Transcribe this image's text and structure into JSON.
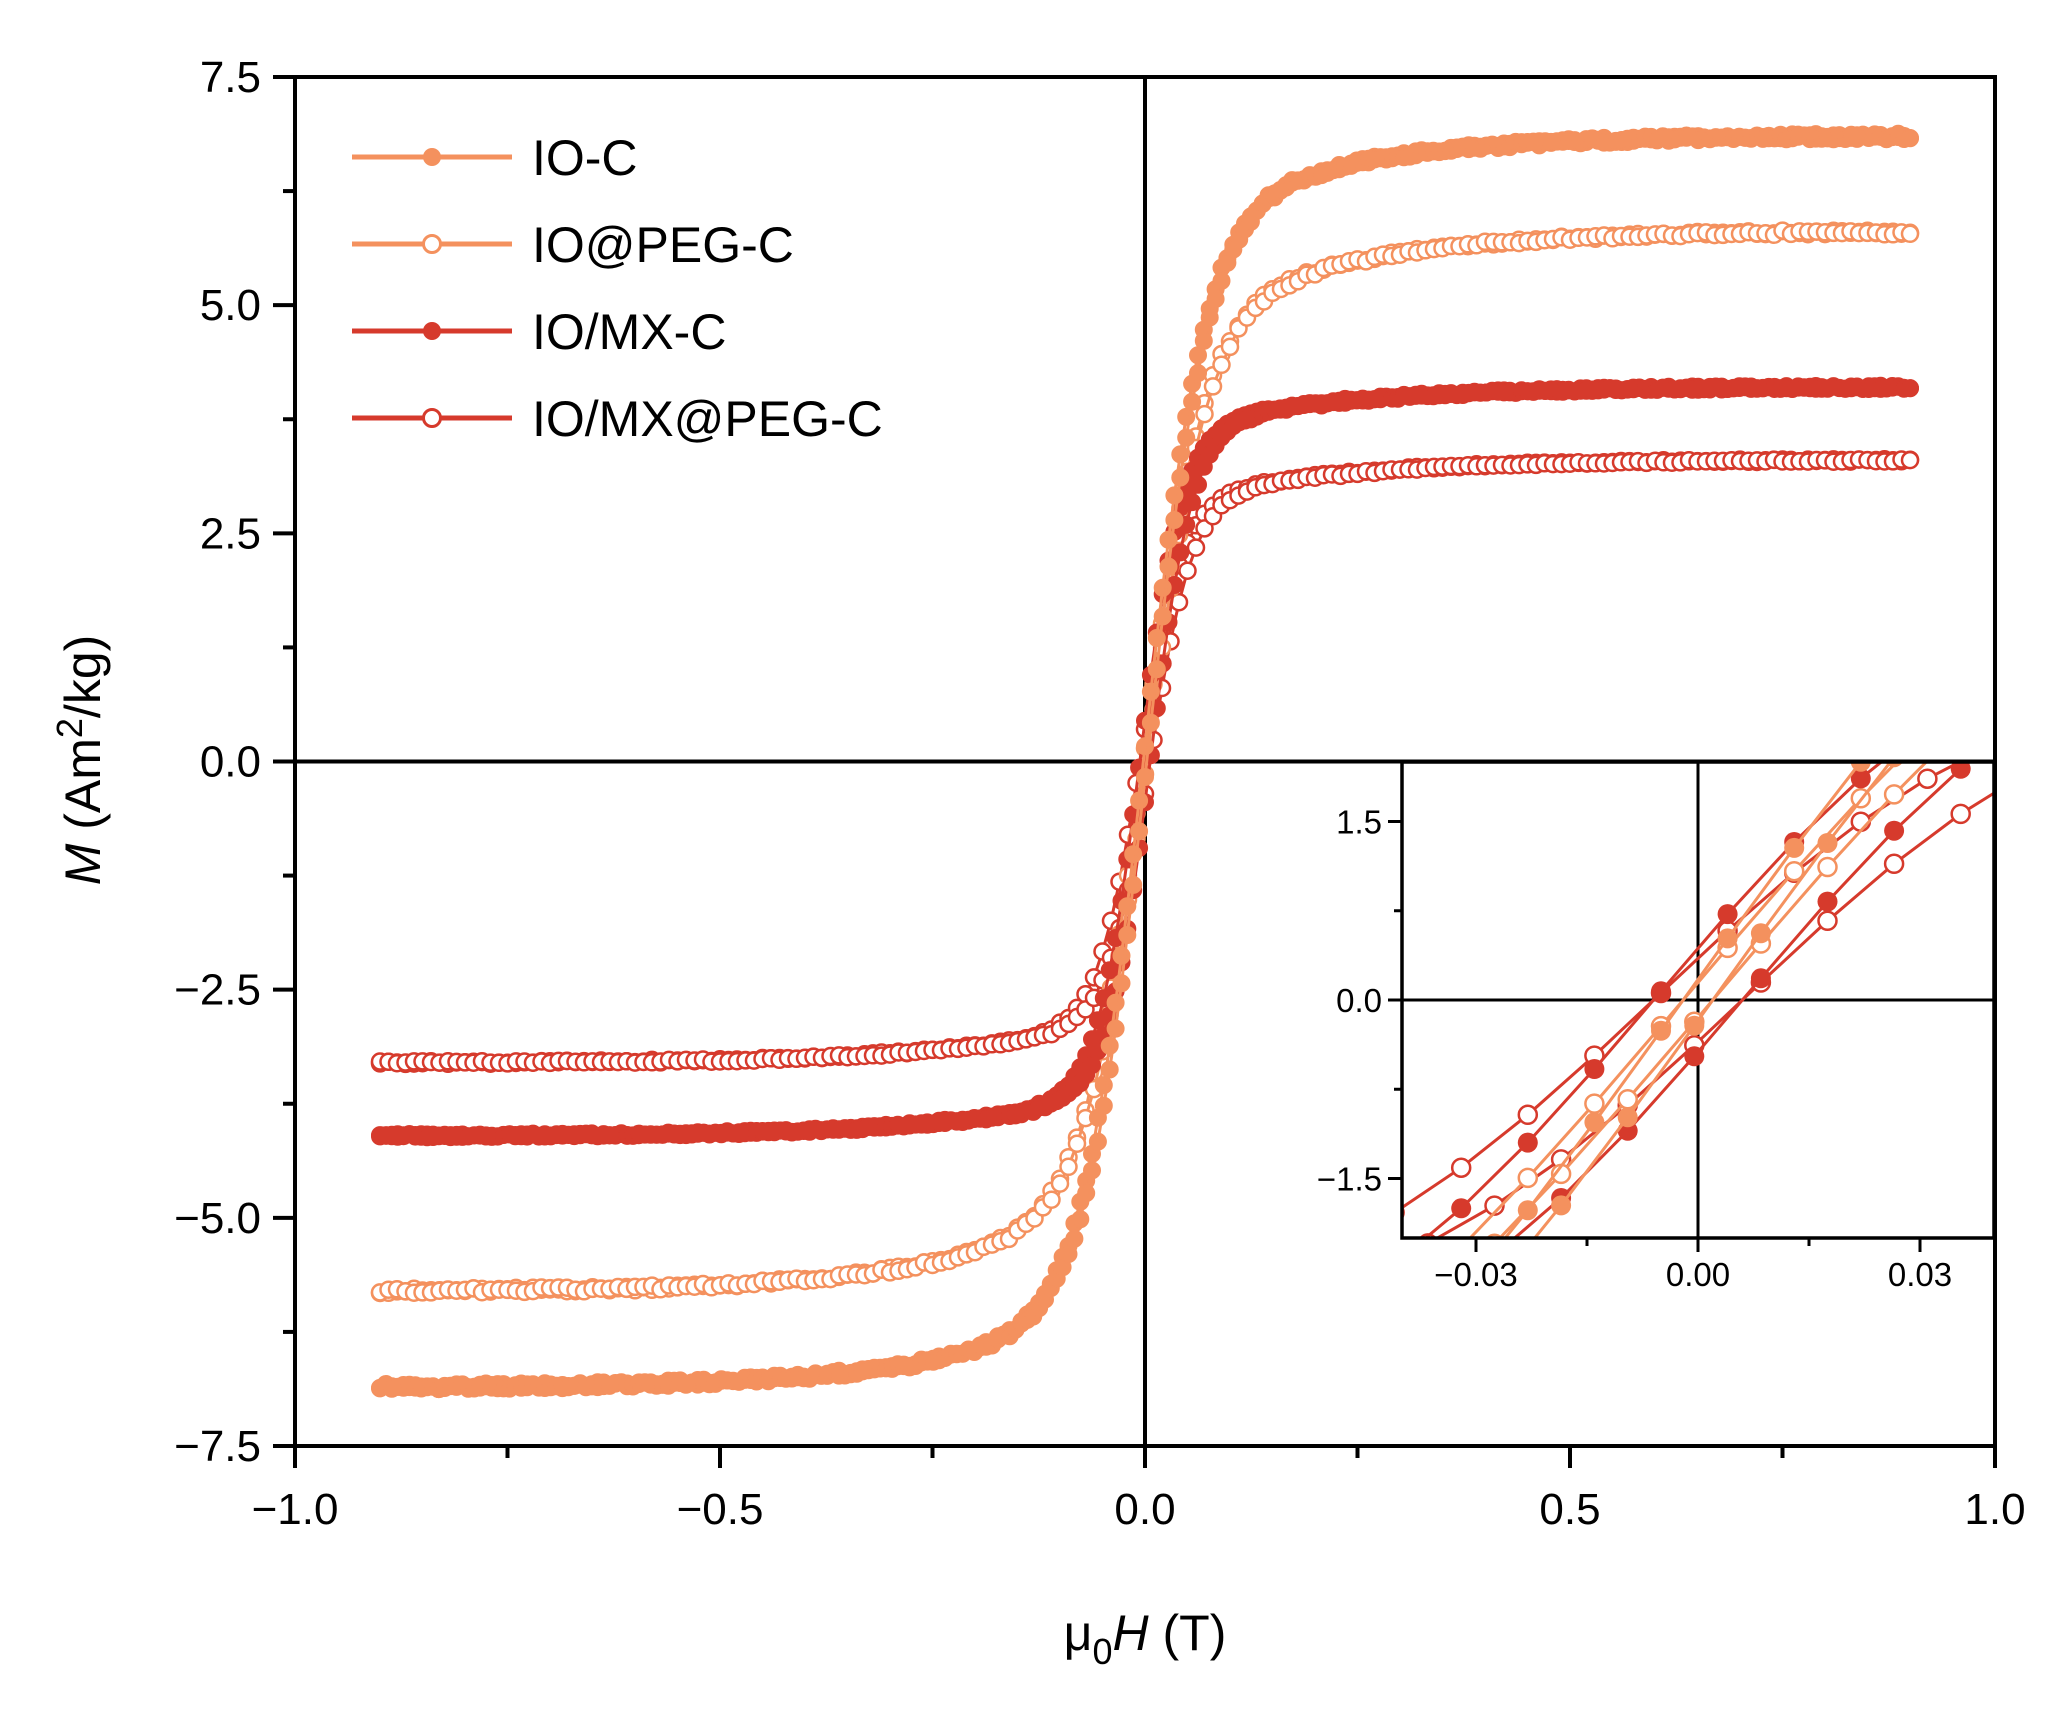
{
  "chart_data": [
    {
      "type": "scatter",
      "panel": "main",
      "title": "",
      "xlabel": {
        "symbol": "μ",
        "subscript": "0",
        "var": "H",
        "unit": " (T)"
      },
      "ylabel": {
        "var": "M",
        "unit_pre": " (Am",
        "sup": "2",
        "unit_post": "/kg)"
      },
      "xlim": [
        -1.0,
        1.0
      ],
      "ylim": [
        -7.5,
        7.5
      ],
      "xticks": [
        -1.0,
        -0.5,
        0.0,
        0.5,
        1.0
      ],
      "xtick_labels": [
        "−1.0",
        "−0.5",
        "0.0",
        "0.5",
        "1.0"
      ],
      "yticks": [
        7.5,
        5.0,
        2.5,
        0.0,
        -2.5,
        -5.0,
        -7.5
      ],
      "ytick_labels": [
        "7.5",
        "5.0",
        "2.5",
        "0.0",
        "−2.5",
        "−5.0",
        "−7.5"
      ],
      "legend_position": "top-left",
      "field_range": [
        -0.9,
        0.9
      ],
      "series": [
        {
          "name": "IO-C",
          "marker": "filled",
          "color": "#F4915E",
          "Ms": 6.85,
          "k": 14,
          "a": 0.15,
          "Hc": 0.002,
          "x_ms": 0.3,
          "samples": 260
        },
        {
          "name": "IO@PEG-C",
          "marker": "open",
          "color": "#F4915E",
          "Ms": 5.8,
          "k": 14,
          "a": 0.2,
          "Hc": 0.002,
          "x_ms": 0.3,
          "samples": 180
        },
        {
          "name": "IO/MX-C",
          "marker": "filled",
          "color": "#D63A2C",
          "Ms": 4.1,
          "k": 20,
          "a": 0.12,
          "Hc": 0.006,
          "x_ms": 0.3,
          "samples": 260
        },
        {
          "name": "IO/MX@PEG-C",
          "marker": "open",
          "color": "#D63A2C",
          "Ms": 3.3,
          "k": 20,
          "a": 0.15,
          "Hc": 0.006,
          "x_ms": 0.3,
          "samples": 180
        }
      ]
    },
    {
      "type": "line",
      "panel": "inset",
      "title": "",
      "xlim": [
        -0.04,
        0.04
      ],
      "ylim": [
        -2.0,
        2.0
      ],
      "xticks": [
        -0.03,
        0.0,
        0.03
      ],
      "xtick_labels": [
        "−0.03",
        "0.00",
        "0.03"
      ],
      "yticks": [
        1.5,
        0.0,
        -1.5
      ],
      "ytick_labels": [
        "1.5",
        "0.0",
        "−1.5"
      ],
      "series": [
        {
          "name": "IO-C",
          "marker": "filled",
          "color": "#F4915E",
          "Ms": 6.85,
          "k": 14,
          "Hc": 0.002,
          "x_ms": 0.3,
          "step": 0.009
        },
        {
          "name": "IO@PEG-C",
          "marker": "open",
          "color": "#F4915E",
          "Ms": 5.8,
          "k": 14,
          "Hc": 0.002,
          "x_ms": 0.3,
          "step": 0.009
        },
        {
          "name": "IO/MX-C",
          "marker": "filled",
          "color": "#D63A2C",
          "Ms": 4.1,
          "k": 20,
          "Hc": 0.006,
          "x_ms": 0.3,
          "step": 0.009
        },
        {
          "name": "IO/MX@PEG-C",
          "marker": "open",
          "color": "#D63A2C",
          "Ms": 3.3,
          "k": 20,
          "Hc": 0.006,
          "x_ms": 0.3,
          "step": 0.009
        }
      ]
    }
  ]
}
